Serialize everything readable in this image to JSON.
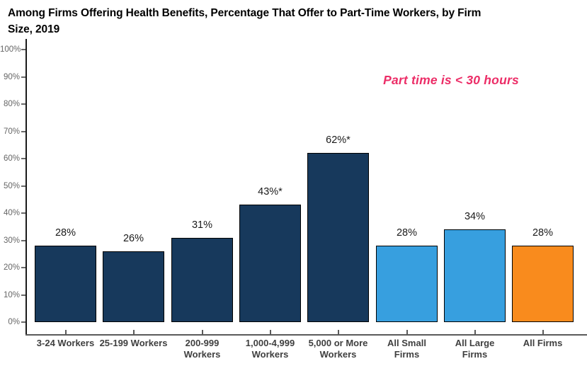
{
  "chart_data": {
    "type": "bar",
    "title": "Among Firms Offering Health Benefits, Percentage That Offer to Part-Time Workers, by Firm\nSize, 2019",
    "categories": [
      "3-24 Workers",
      "25-199 Workers",
      "200-999\nWorkers",
      "1,000-4,999\nWorkers",
      "5,000 or More\nWorkers",
      "All Small\nFirms",
      "All Large\nFirms",
      "All Firms"
    ],
    "values": [
      28,
      26,
      31,
      43,
      62,
      28,
      34,
      28
    ],
    "value_labels": [
      "28%",
      "26%",
      "31%",
      "43%*",
      "62%*",
      "28%",
      "34%",
      "28%"
    ],
    "bar_colors": [
      "#17395C",
      "#17395C",
      "#17395C",
      "#17395C",
      "#17395C",
      "#379FDF",
      "#379FDF",
      "#F98B1D"
    ],
    "palette": {
      "firm_size_bars": "#17395C",
      "summary_bars": "#379FDF",
      "all_firms_bar": "#F98B1D"
    },
    "xlabel": "",
    "ylabel": "",
    "ylim": [
      0,
      100
    ],
    "ytick_labels": [
      "0%",
      "10%",
      "20%",
      "30%",
      "40%",
      "50%",
      "60%",
      "70%",
      "80%",
      "90%",
      "100%"
    ],
    "grid": false,
    "legend": "none",
    "annotation": {
      "text": "Part time is < 30 hours",
      "color": "#EC2D67"
    }
  }
}
